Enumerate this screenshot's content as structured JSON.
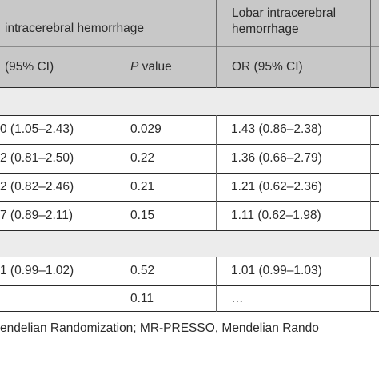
{
  "header": {
    "deep_title": "intracerebral hemorrhage",
    "lobar_title_line1": "Lobar intracerebral",
    "lobar_title_line2": "hemorrhage"
  },
  "subheader": {
    "col1": "(95% CI)",
    "col2_italic": "P",
    "col2_rest": " value",
    "col3": "OR (95% CI)"
  },
  "rows": [
    {
      "or_deep": "0 (1.05–2.43)",
      "p": "0.029",
      "or_lobar": "1.43 (0.86–2.38)"
    },
    {
      "or_deep": "2 (0.81–2.50)",
      "p": "0.22",
      "or_lobar": "1.36 (0.66–2.79)"
    },
    {
      "or_deep": "2 (0.82–2.46)",
      "p": "0.21",
      "or_lobar": "1.21 (0.62–2.36)"
    },
    {
      "or_deep": "7 (0.89–2.11)",
      "p": "0.15",
      "or_lobar": "1.11 (0.62–1.98)"
    },
    {
      "or_deep": "1 (0.99–1.02)",
      "p": "0.52",
      "or_lobar": "1.01 (0.99–1.03)"
    },
    {
      "or_deep": "",
      "p": "0.11",
      "or_lobar": "…"
    }
  ],
  "footnote": "endelian Randomization; MR-PRESSO, Mendelian Rando"
}
